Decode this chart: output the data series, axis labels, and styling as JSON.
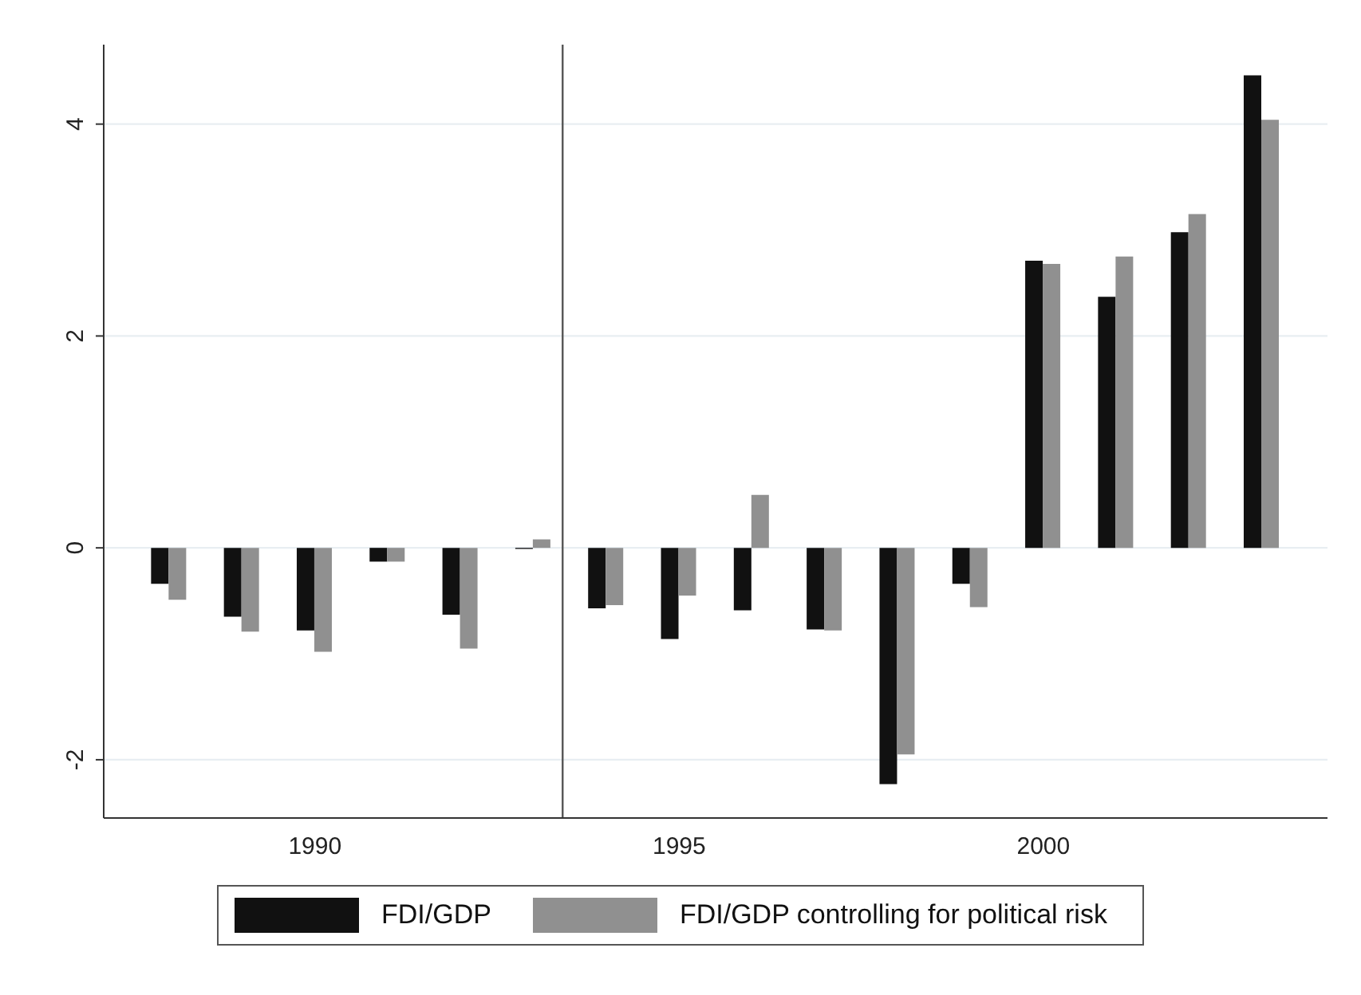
{
  "chart_data": {
    "type": "bar",
    "x": [
      1988,
      1989,
      1990,
      1991,
      1992,
      1993,
      1994,
      1995,
      1996,
      1997,
      1998,
      1999,
      2000,
      2001,
      2002,
      2003
    ],
    "series": [
      {
        "name": "FDI/GDP",
        "color": "#111111",
        "values": [
          -0.34,
          -0.65,
          -0.78,
          -0.13,
          -0.63,
          -0.01,
          -0.57,
          -0.86,
          -0.59,
          -0.77,
          -2.23,
          -0.34,
          2.71,
          2.37,
          2.98,
          4.46
        ]
      },
      {
        "name": "FDI/GDP controlling for political risk",
        "color": "#909090",
        "values": [
          -0.49,
          -0.79,
          -0.98,
          -0.13,
          -0.95,
          0.08,
          -0.54,
          -0.45,
          0.5,
          -0.78,
          -1.95,
          -0.56,
          2.68,
          2.75,
          3.15,
          4.04
        ]
      }
    ],
    "xlim": [
      1987.1,
      2003.9
    ],
    "xticks": [
      1990,
      1995,
      2000
    ],
    "ylim": [
      -2.55,
      4.75
    ],
    "yticks": [
      -2,
      0,
      2,
      4
    ],
    "ref_lines": [
      {
        "axis": "x",
        "value": 1993.4,
        "color": "#555555"
      }
    ],
    "grid": "y",
    "legend": "bottom"
  }
}
